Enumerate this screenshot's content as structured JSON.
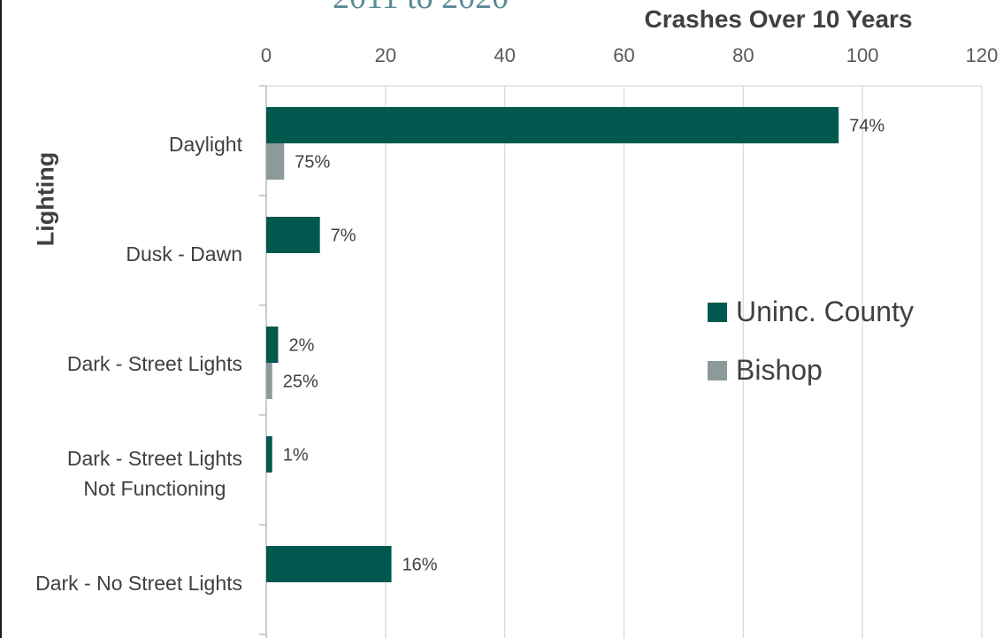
{
  "title_partial": "2011 to 2020",
  "chart_data": {
    "type": "bar",
    "orientation": "horizontal",
    "title": "",
    "xlabel": "Crashes Over 10 Years",
    "ylabel": "Lighting",
    "xlim": [
      0,
      120
    ],
    "xticks": [
      0,
      20,
      40,
      60,
      80,
      100,
      120
    ],
    "grid": true,
    "legend_position": "right",
    "categories": [
      "Daylight",
      "Dusk - Dawn",
      "Dark - Street Lights",
      "Dark - Street Lights Not Functioning",
      "Dark - No Street Lights"
    ],
    "category_display": [
      [
        "Daylight"
      ],
      [
        "Dusk - Dawn"
      ],
      [
        "Dark - Street Lights"
      ],
      [
        "Dark - Street Lights",
        "Not Functioning"
      ],
      [
        "Dark - No Street Lights"
      ]
    ],
    "series": [
      {
        "name": "Uninc. County",
        "color": "#00584f",
        "values": [
          96,
          9,
          2,
          1,
          21
        ],
        "labels": [
          "74%",
          "7%",
          "2%",
          "1%",
          "16%"
        ]
      },
      {
        "name": "Bishop",
        "color": "#8b9a9a",
        "values": [
          3,
          0,
          1,
          0,
          0
        ],
        "labels": [
          "75%",
          "",
          "25%",
          "",
          ""
        ]
      }
    ]
  }
}
